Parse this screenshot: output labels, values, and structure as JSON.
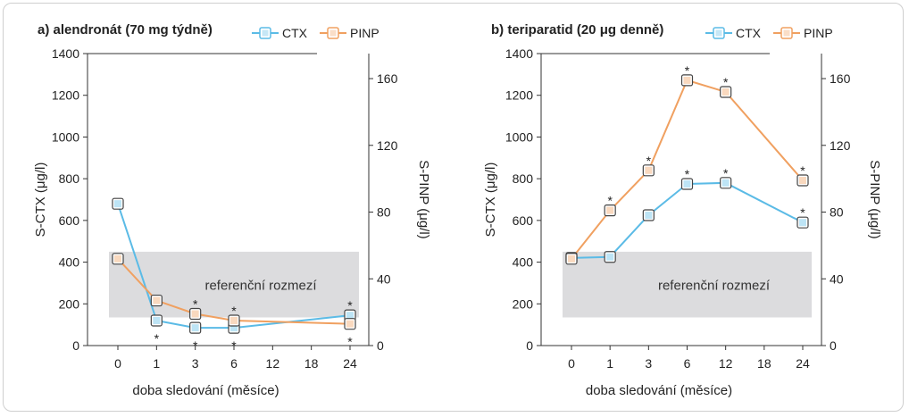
{
  "chart_data": [
    {
      "type": "line",
      "title": "a) alendronát (70 mg týdně)",
      "xlabel": "doba sledování (měsíce)",
      "ylabel": "S-CTX (μg/l)",
      "y2label": "S-PINP (μg/l)",
      "x": [
        0,
        1,
        3,
        6,
        12,
        18,
        24
      ],
      "xticklabels": [
        "0",
        "1",
        "3",
        "6",
        "12",
        "18",
        "24"
      ],
      "ylim": [
        0,
        1400
      ],
      "yticks": [
        "0",
        "200",
        "400",
        "600",
        "800",
        "1000",
        "1200",
        "1400"
      ],
      "y2lim": [
        0,
        175
      ],
      "y2ticks": [
        "0",
        "40",
        "80",
        "120",
        "160"
      ],
      "reference_band": {
        "label": "referenční rozmezí",
        "ymin": 135,
        "ymax": 450
      },
      "series": [
        {
          "name": "CTX",
          "axis": "left",
          "color": "#5bbbe6",
          "x": [
            0,
            1,
            3,
            6,
            24
          ],
          "values": [
            680,
            120,
            85,
            85,
            145
          ]
        },
        {
          "name": "PINP",
          "axis": "right",
          "color": "#f0a060",
          "x": [
            0,
            1,
            3,
            6,
            24
          ],
          "values": [
            52,
            27,
            19,
            15,
            13
          ]
        }
      ],
      "annotations": [
        {
          "text": "*",
          "x": 1,
          "pos": "below"
        },
        {
          "text": "*",
          "x": 3,
          "pos": "above"
        },
        {
          "text": "*",
          "x": 3,
          "pos": "below"
        },
        {
          "text": "*",
          "x": 6,
          "pos": "above"
        },
        {
          "text": "*",
          "x": 6,
          "pos": "below"
        },
        {
          "text": "*",
          "x": 24,
          "pos": "above"
        },
        {
          "text": "*",
          "x": 24,
          "pos": "below"
        }
      ],
      "legend": "top-right"
    },
    {
      "type": "line",
      "title": "b) teriparatid (20 μg denně)",
      "xlabel": "doba sledování (měsíce)",
      "ylabel": "S-CTX (μg/l)",
      "y2label": "S-PINP (μg/l)",
      "x": [
        0,
        1,
        3,
        6,
        12,
        18,
        24
      ],
      "xticklabels": [
        "0",
        "1",
        "3",
        "6",
        "12",
        "18",
        "24"
      ],
      "ylim": [
        0,
        1400
      ],
      "yticks": [
        "0",
        "200",
        "400",
        "600",
        "800",
        "1000",
        "1200",
        "1400"
      ],
      "y2lim": [
        0,
        175
      ],
      "y2ticks": [
        "0",
        "40",
        "80",
        "120",
        "160"
      ],
      "reference_band": {
        "label": "referenční rozmezí",
        "ymin": 135,
        "ymax": 450
      },
      "series": [
        {
          "name": "CTX",
          "axis": "left",
          "color": "#5bbbe6",
          "x": [
            0,
            1,
            3,
            6,
            12,
            24
          ],
          "values": [
            420,
            425,
            625,
            775,
            780,
            590
          ]
        },
        {
          "name": "PINP",
          "axis": "right",
          "color": "#f0a060",
          "x": [
            0,
            1,
            3,
            6,
            12,
            24
          ],
          "values": [
            52,
            81,
            105,
            159,
            152,
            99
          ]
        }
      ],
      "annotations": [
        {
          "text": "*",
          "x": 1,
          "series": "PINP",
          "pos": "above"
        },
        {
          "text": "*",
          "x": 3,
          "series": "PINP",
          "pos": "above"
        },
        {
          "text": "*",
          "x": 6,
          "series": "PINP",
          "pos": "above"
        },
        {
          "text": "*",
          "x": 12,
          "series": "PINP",
          "pos": "above"
        },
        {
          "text": "*",
          "x": 24,
          "series": "PINP",
          "pos": "above"
        },
        {
          "text": "*",
          "x": 6,
          "series": "CTX",
          "pos": "above"
        },
        {
          "text": "*",
          "x": 12,
          "series": "CTX",
          "pos": "above"
        },
        {
          "text": "*",
          "x": 24,
          "series": "CTX",
          "pos": "above"
        }
      ],
      "legend": "top-right"
    }
  ]
}
